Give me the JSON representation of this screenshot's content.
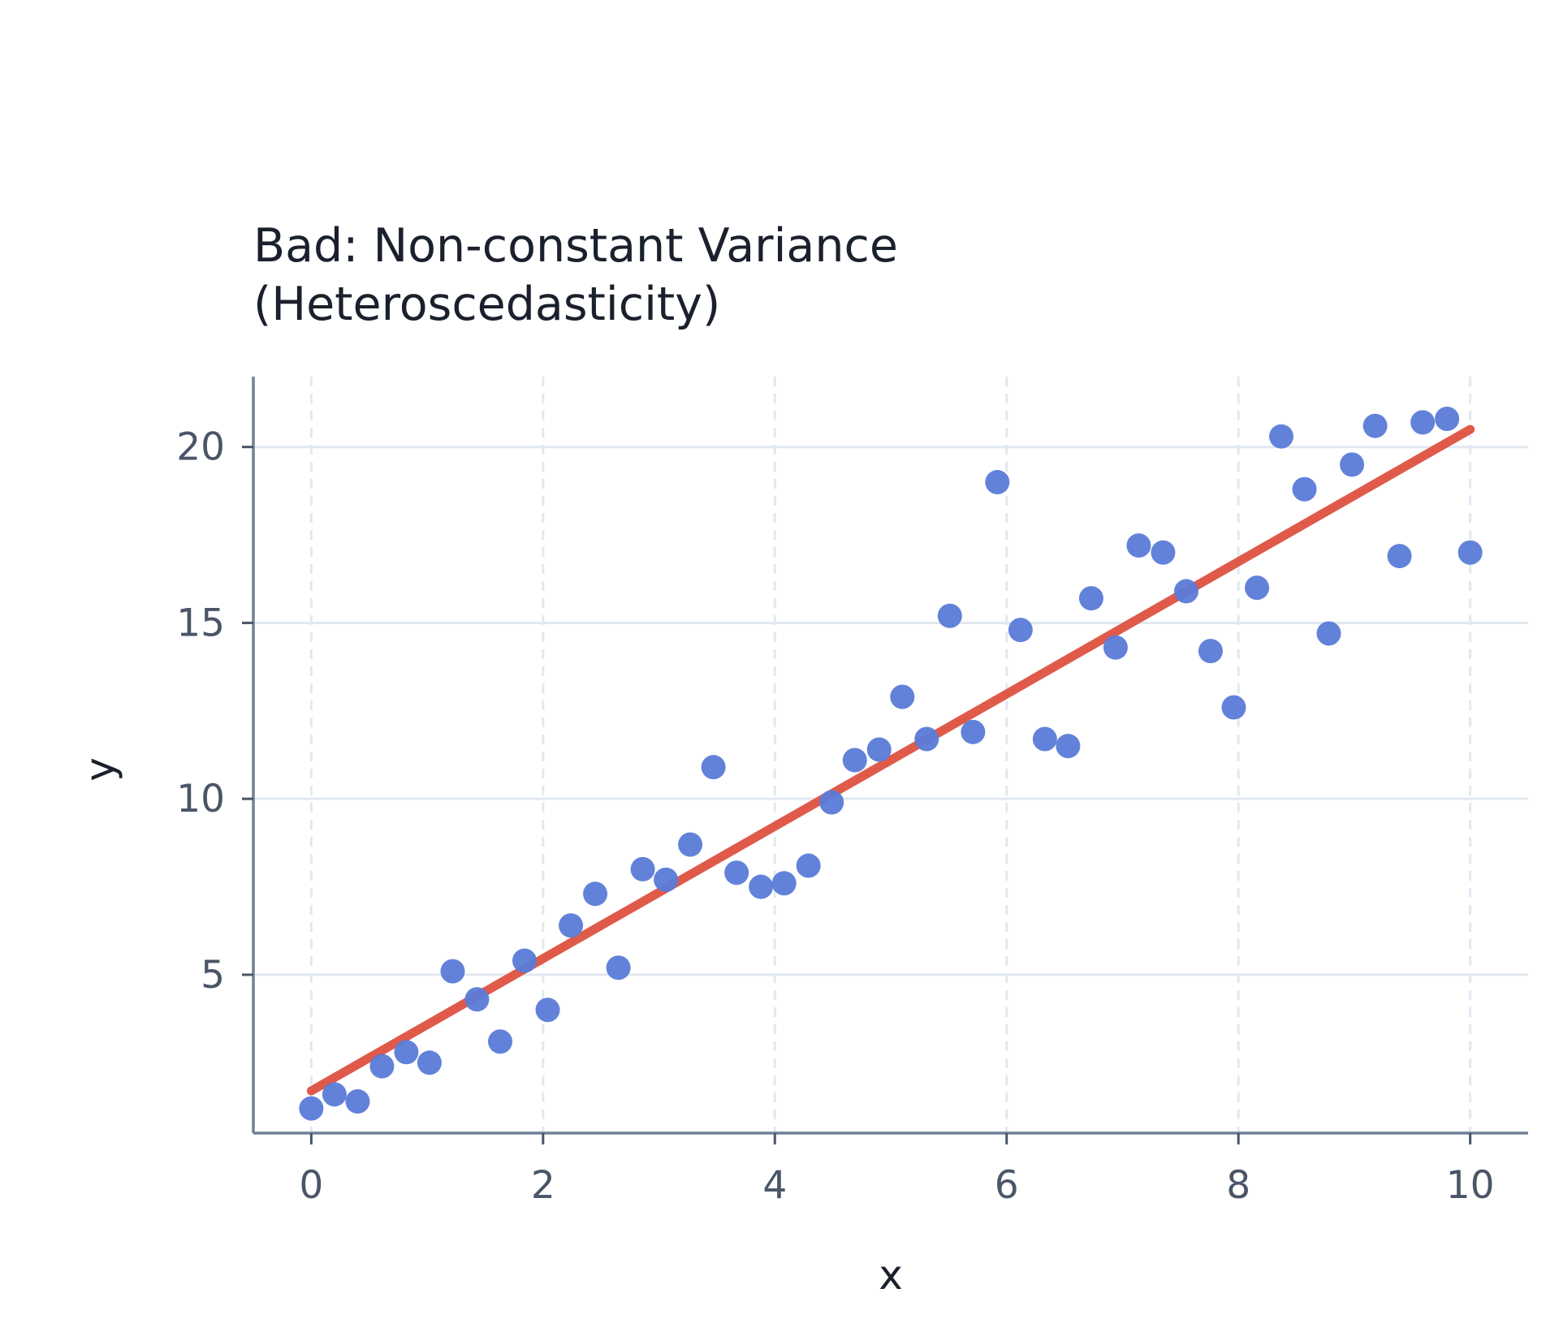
{
  "chart_data": {
    "type": "scatter",
    "title_lines": [
      "Bad: Non-constant Variance",
      "(Heteroscedasticity)"
    ],
    "xlabel": "x",
    "ylabel": "y",
    "xlim": [
      -0.5,
      10.5
    ],
    "ylim": [
      0.5,
      22
    ],
    "xticks": [
      0,
      2,
      4,
      6,
      8,
      10
    ],
    "yticks": [
      5,
      10,
      15,
      20
    ],
    "grid": true,
    "colors": {
      "points": "#5a7bd8",
      "fit_line": "#e05a4a"
    },
    "series": [
      {
        "type": "scatter",
        "x": [
          0,
          0.2,
          0.4,
          0.61,
          0.82,
          1.02,
          1.22,
          1.43,
          1.63,
          1.84,
          2.04,
          2.24,
          2.45,
          2.65,
          2.86,
          3.06,
          3.27,
          3.47,
          3.67,
          3.88,
          4.08,
          4.29,
          4.49,
          4.69,
          4.9,
          5.1,
          5.31,
          5.51,
          5.71,
          5.92,
          6.12,
          6.33,
          6.53,
          6.73,
          6.94,
          7.14,
          7.35,
          7.55,
          7.76,
          7.96,
          8.16,
          8.37,
          8.57,
          8.78,
          8.98,
          9.18,
          9.39,
          9.59,
          9.8,
          10
        ],
        "y": [
          1.2,
          1.6,
          1.4,
          2.4,
          2.8,
          2.5,
          5.1,
          4.3,
          3.1,
          5.4,
          4.0,
          6.4,
          7.3,
          5.2,
          8.0,
          7.7,
          8.7,
          10.9,
          7.9,
          7.5,
          7.6,
          8.1,
          9.9,
          11.1,
          11.4,
          12.9,
          11.7,
          15.2,
          11.9,
          19.0,
          14.8,
          11.7,
          11.5,
          15.7,
          14.3,
          17.2,
          17.0,
          15.9,
          14.2,
          12.6,
          16.0,
          20.3,
          18.8,
          14.7,
          19.5,
          20.6,
          16.9,
          20.7,
          20.8,
          17.0
        ]
      },
      {
        "type": "line",
        "x": [
          0,
          10
        ],
        "y": [
          1.7,
          20.5
        ]
      }
    ]
  }
}
